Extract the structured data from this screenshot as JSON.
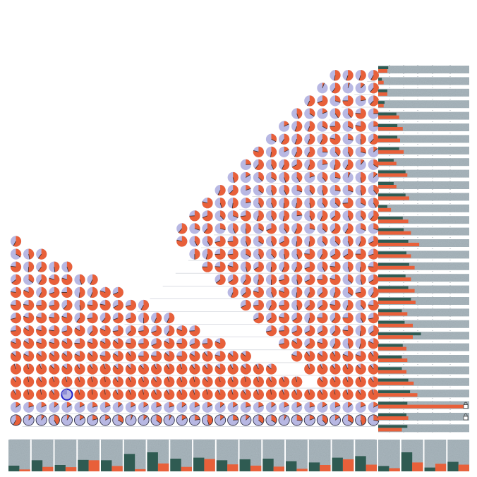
{
  "colors": {
    "orange": "#e8603a",
    "lavender": "#b8b8e3",
    "teal": "#2f5b52",
    "gray": "#a9b6bd",
    "grid": "#c7cbd3",
    "dot_grid": "#9aa2aa",
    "highlight": "#2323c8"
  },
  "chart_data": {
    "type": "heatmap",
    "title": "",
    "size": 29,
    "highlight": {
      "row": 25,
      "col": 4
    },
    "cells": [
      [
        0.53,
        0.55,
        0.55,
        0.58
      ],
      [
        0.06,
        0.6,
        0.05,
        0.13,
        0.61
      ],
      [
        0.57,
        0.69,
        0.3,
        0.75,
        0.22,
        0.62
      ],
      [
        0.45,
        0.34,
        0.19,
        0.4,
        0.39,
        0.76,
        0.25
      ],
      [
        0.18,
        0.56,
        0.56,
        0.33,
        0.75,
        0.32,
        0.78,
        0.24
      ],
      [
        0.33,
        0.59,
        0.56,
        0.56,
        0.57,
        0.78,
        0.28,
        0.49,
        0.62
      ],
      [
        0.79,
        0.52,
        0.18,
        0.57,
        0.58,
        0.26,
        0.39,
        0.43,
        0.29,
        0.14
      ],
      [
        0.24,
        0.61,
        0.43,
        0.57,
        0.67,
        0.56,
        0.22,
        0.54,
        0.59,
        0.11,
        0.34
      ],
      [
        0.46,
        0.16,
        0.37,
        0.34,
        0.45,
        0.41,
        0.2,
        0.39,
        0.28,
        0.07,
        0.48,
        0.13
      ],
      [
        0.57,
        0.63,
        0.2,
        0.35,
        0.45,
        0.43,
        0.3,
        0.4,
        0.47,
        0.28,
        0.3,
        0.47,
        0.39
      ],
      [
        0.79,
        0.45,
        0.52,
        0.22,
        0.42,
        0.44,
        0.51,
        0.54,
        0.47,
        0.41,
        0.37,
        0.74,
        0.33,
        0.42
      ],
      [
        0.74,
        0.69,
        0.38,
        0.31,
        0.73,
        0.55,
        0.43,
        0.53,
        0.23,
        0.43,
        0.56,
        0.64,
        0.43,
        0.4,
        0.61
      ],
      [
        0.61,
        0.3,
        0.61,
        0.29,
        0.43,
        0.49,
        0.33,
        0.69,
        0.41,
        0.57,
        0.28,
        0.37,
        0.62,
        0.59,
        0.31,
        0.3
      ],
      [
        0.58,
        0.79,
        0.42,
        0.42,
        0.72,
        0.74,
        0.45,
        0.34,
        0.44,
        0.68,
        0.52,
        0.52,
        0.39,
        0.38,
        0.44,
        0.56,
        0.68
      ],
      [
        0.34,
        0.47,
        0.6,
        0.5,
        0.54,
        0.74,
        0.73,
        0.34,
        0.43,
        0.39,
        0.47,
        0.45,
        0.76,
        0.58,
        0.66,
        0.66,
        0.75,
        0.7
      ],
      [
        0.77,
        0.51,
        0.6,
        0.48,
        0.45,
        0.75,
        0.76,
        0.79,
        0.46,
        0.66,
        0.51,
        0.56,
        0.57,
        0.69,
        0.43,
        0.77,
        0.45,
        0.52,
        0.76
      ],
      [
        0.64,
        0.35,
        0.59,
        0.8,
        0.8,
        0.44,
        0.57,
        0.64,
        0.66,
        0.59,
        0.53,
        0.5,
        0.72,
        0.47,
        0.68,
        0.75,
        0.79,
        0.37,
        0.46,
        0.66
      ],
      [
        0.77,
        0.82,
        0.58,
        0.7,
        0.75,
        0.52,
        0.56,
        0.8,
        0.69,
        0.56,
        0.63,
        0.79,
        0.44,
        0.81,
        0.52,
        0.57,
        0.63,
        0.55,
        0.35,
        0.73,
        0.59
      ],
      [
        0.76,
        0.77,
        0.74,
        0.72,
        0.62,
        0.48,
        0.76,
        0.78,
        0.67,
        0.71,
        0.58,
        0.68,
        0.73,
        0.58,
        0.73,
        0.47,
        0.63,
        0.65,
        0.77,
        0.56,
        0.39,
        0.76
      ],
      [
        0.71,
        0.8,
        0.79,
        0.78,
        0.8,
        0.6,
        0.73,
        0.61,
        0.69,
        0.7,
        0.5,
        0.56,
        0.57,
        0.69,
        0.64,
        0.79,
        0.65,
        0.54,
        0.76,
        0.61,
        0.75,
        0.43,
        0.72
      ],
      [
        0.74,
        0.85,
        0.79,
        0.77,
        0.71,
        0.84,
        0.61,
        0.82,
        0.73,
        0.62,
        0.73,
        0.69,
        0.58,
        0.81,
        0.74,
        0.72,
        0.74,
        0.68,
        0.67,
        0.66,
        0.61,
        0.77,
        0.52,
        0.64
      ],
      [
        0.81,
        0.84,
        0.79,
        0.79,
        0.84,
        0.76,
        0.8,
        0.83,
        0.86,
        0.77,
        0.74,
        0.68,
        0.83,
        0.76,
        0.69,
        0.74,
        0.81,
        0.72,
        0.85,
        0.64,
        0.79,
        0.58,
        0.45,
        0.54,
        0.82
      ],
      [
        0.86,
        0.82,
        0.85,
        0.86,
        0.86,
        0.82,
        0.87,
        0.78,
        0.84,
        0.9,
        0.76,
        0.77,
        0.87,
        0.76,
        0.84,
        0.89,
        0.79,
        0.86,
        0.86,
        0.8,
        0.9,
        0.85,
        0.91,
        0.81,
        0.8,
        0.9
      ],
      [
        0.95,
        0.95,
        0.94,
        0.88,
        0.86,
        0.91,
        0.91,
        0.95,
        0.87,
        0.88,
        0.89,
        0.93,
        0.92,
        0.94,
        0.9,
        0.89,
        0.86,
        0.91,
        0.87,
        0.92,
        0.86,
        0.93,
        0.93,
        0.89,
        0.92,
        0.88,
        0.89
      ],
      [
        0.9,
        0.97,
        0.91,
        0.94,
        0.95,
        0.94,
        0.96,
        0.98,
        0.9,
        0.93,
        0.93,
        0.9,
        0.95,
        0.93,
        0.96,
        0.9,
        0.96,
        0.93,
        0.97,
        0.94,
        0.92,
        0.93,
        0.96,
        0.9,
        0.91,
        0.93,
        0.95,
        0.9
      ],
      [
        0.92,
        0.97,
        0.97,
        0.91,
        0.97,
        0.95,
        0.98,
        0.98,
        0.92,
        0.94,
        0.97,
        0.92,
        0.92,
        0.92,
        0.95,
        0.97,
        0.92,
        0.95,
        0.91,
        0.93,
        0.98,
        0.94,
        0.92,
        0.95,
        0.92,
        0.97,
        0.94,
        0.91,
        0.96
      ],
      [
        0.15,
        0.2,
        0.18,
        0.14,
        0.16,
        0.17,
        0.21,
        0.19,
        0.13,
        0.17,
        0.16,
        0.19,
        0.2,
        0.15,
        0.18,
        0.17,
        0.14,
        0.16,
        0.2,
        0.19,
        0.15,
        0.18,
        0.17,
        0.21,
        0.16,
        0.19,
        0.14,
        0.18,
        0.17
      ],
      [
        0.58,
        0.12,
        0.1,
        0.42,
        0.09,
        0.16,
        0.21,
        0.18,
        0.33,
        0.06,
        0.12,
        0.36,
        0.08,
        0.17,
        0.23,
        0.45,
        0.14,
        0.24,
        0.13,
        0.36,
        0.34,
        0.08,
        0.27,
        0.19,
        0.38,
        0.15,
        0.34,
        0.46,
        0.28
      ]
    ],
    "row_bars": [
      [
        0.11,
        0.1
      ],
      [
        0.04,
        0.06
      ],
      [
        0.1,
        0.1
      ],
      [
        0.07,
        0.06
      ],
      [
        0.2,
        0.23
      ],
      [
        0.21,
        0.27
      ],
      [
        0.21,
        0.24
      ],
      [
        0.23,
        0.28
      ],
      [
        0.17,
        0.2
      ],
      [
        0.3,
        0.32
      ],
      [
        0.17,
        0.2
      ],
      [
        0.3,
        0.34
      ],
      [
        0.1,
        0.14
      ],
      [
        0.27,
        0.33
      ],
      [
        0.28,
        0.36
      ],
      [
        0.33,
        0.45
      ],
      [
        0.31,
        0.36
      ],
      [
        0.34,
        0.4
      ],
      [
        0.3,
        0.36
      ],
      [
        0.33,
        0.4
      ],
      [
        0.36,
        0.41
      ],
      [
        0.26,
        0.32
      ],
      [
        0.29,
        0.38
      ],
      [
        0.47,
        0.38
      ],
      [
        0.27,
        0.31
      ],
      [
        0.26,
        0.32
      ],
      [
        0.26,
        0.31
      ],
      [
        0.33,
        0.39
      ],
      [
        0.35,
        0.43
      ],
      [
        0.32,
        0.96
      ],
      [
        0.31,
        0.33
      ],
      [
        0.32,
        0.26
      ]
    ],
    "locks": [
      29,
      30
    ],
    "col_bars": [
      [
        0.18,
        0.06
      ],
      [
        0.35,
        0.14
      ],
      [
        0.2,
        0.13
      ],
      [
        0.36,
        0.35
      ],
      [
        0.35,
        0.17
      ],
      [
        0.55,
        0.07
      ],
      [
        0.6,
        0.25
      ],
      [
        0.4,
        0.14
      ],
      [
        0.43,
        0.39
      ],
      [
        0.35,
        0.22
      ],
      [
        0.38,
        0.18
      ],
      [
        0.4,
        0.15
      ],
      [
        0.32,
        0.08
      ],
      [
        0.28,
        0.2
      ],
      [
        0.43,
        0.38
      ],
      [
        0.48,
        0.21
      ],
      [
        0.17,
        0.1
      ],
      [
        0.6,
        0.28
      ],
      [
        0.12,
        0.24
      ],
      [
        0.3,
        0.21
      ]
    ]
  }
}
